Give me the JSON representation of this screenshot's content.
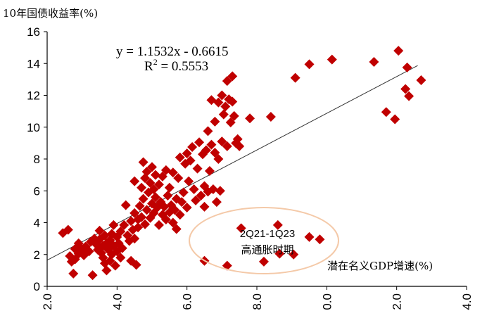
{
  "chart_data": {
    "type": "scatter",
    "ylabel": "10年国债收益率(%)",
    "xlabel": "潜在名义GDP增速(%)",
    "xlim": [
      2.0,
      14.0
    ],
    "ylim": [
      0,
      16
    ],
    "xticks": [
      "2.0",
      "4.0",
      "6.0",
      "8.0",
      "0.0",
      "2.0",
      "4.0"
    ],
    "yticks": [
      "0",
      "2",
      "4",
      "6",
      "8",
      "10",
      "12",
      "14",
      "16"
    ],
    "marker_color": "#c00000",
    "trendline": {
      "slope": 1.1532,
      "intercept": -0.6615,
      "equation": "y = 1.1532x - 0.6615",
      "r2_prefix": "R",
      "r2_sup": "2",
      "r2_value": " = 0.5553"
    },
    "annotation": {
      "line1": "2Q21-1Q23",
      "line2": "高通胀时期",
      "ellipse_color": "#f4c9a8"
    },
    "points": [
      [
        2.45,
        3.35
      ],
      [
        2.6,
        3.55
      ],
      [
        2.65,
        1.9
      ],
      [
        2.7,
        1.55
      ],
      [
        2.75,
        0.8
      ],
      [
        2.8,
        2.35
      ],
      [
        2.8,
        1.7
      ],
      [
        2.9,
        2.05
      ],
      [
        2.9,
        2.7
      ],
      [
        3.0,
        2.35
      ],
      [
        3.05,
        1.95
      ],
      [
        3.1,
        2.5
      ],
      [
        3.2,
        2.2
      ],
      [
        3.25,
        2.8
      ],
      [
        3.3,
        0.7
      ],
      [
        3.35,
        3.0
      ],
      [
        3.4,
        2.65
      ],
      [
        3.45,
        2.3
      ],
      [
        3.5,
        2.95
      ],
      [
        3.5,
        3.5
      ],
      [
        3.55,
        2.1
      ],
      [
        3.6,
        1.8
      ],
      [
        3.6,
        2.55
      ],
      [
        3.65,
        3.2
      ],
      [
        3.65,
        1.45
      ],
      [
        3.7,
        2.7
      ],
      [
        3.7,
        1.0
      ],
      [
        3.75,
        2.3
      ],
      [
        3.8,
        2.9
      ],
      [
        3.8,
        1.6
      ],
      [
        3.85,
        3.3
      ],
      [
        3.85,
        2.0
      ],
      [
        3.9,
        3.85
      ],
      [
        3.9,
        2.55
      ],
      [
        3.95,
        1.3
      ],
      [
        4.0,
        2.2
      ],
      [
        4.0,
        3.1
      ],
      [
        4.05,
        2.7
      ],
      [
        4.1,
        1.8
      ],
      [
        4.1,
        3.45
      ],
      [
        4.15,
        2.4
      ],
      [
        4.2,
        3.85
      ],
      [
        4.25,
        5.1
      ],
      [
        4.3,
        3.2
      ],
      [
        4.35,
        2.85
      ],
      [
        4.4,
        1.6
      ],
      [
        4.4,
        4.1
      ],
      [
        4.45,
        3.55
      ],
      [
        4.5,
        3.0
      ],
      [
        4.5,
        4.6
      ],
      [
        4.5,
        6.6
      ],
      [
        4.55,
        1.35
      ],
      [
        4.6,
        4.2
      ],
      [
        4.6,
        3.7
      ],
      [
        4.65,
        5.05
      ],
      [
        4.7,
        4.35
      ],
      [
        4.7,
        6.2
      ],
      [
        4.75,
        7.8
      ],
      [
        4.75,
        5.5
      ],
      [
        4.8,
        3.9
      ],
      [
        4.8,
        6.8
      ],
      [
        4.85,
        4.8
      ],
      [
        4.85,
        7.2
      ],
      [
        4.9,
        5.9
      ],
      [
        4.95,
        4.3
      ],
      [
        4.95,
        6.5
      ],
      [
        5.0,
        7.5
      ],
      [
        5.0,
        5.2
      ],
      [
        5.05,
        4.6
      ],
      [
        5.05,
        6.1
      ],
      [
        5.1,
        7.0
      ],
      [
        5.1,
        5.6
      ],
      [
        5.15,
        4.95
      ],
      [
        5.2,
        6.4
      ],
      [
        5.2,
        3.85
      ],
      [
        5.25,
        5.3
      ],
      [
        5.3,
        4.5
      ],
      [
        5.3,
        6.9
      ],
      [
        5.35,
        5.0
      ],
      [
        5.4,
        7.3
      ],
      [
        5.4,
        4.2
      ],
      [
        5.45,
        5.7
      ],
      [
        5.5,
        4.65
      ],
      [
        5.5,
        6.2
      ],
      [
        5.55,
        5.1
      ],
      [
        5.6,
        4.0
      ],
      [
        5.6,
        7.15
      ],
      [
        5.65,
        4.8
      ],
      [
        5.7,
        5.5
      ],
      [
        5.7,
        3.6
      ],
      [
        5.75,
        6.8
      ],
      [
        5.8,
        4.5
      ],
      [
        5.8,
        8.1
      ],
      [
        5.85,
        5.3
      ],
      [
        5.9,
        5.9
      ],
      [
        5.95,
        7.7
      ],
      [
        6.0,
        4.95
      ],
      [
        6.0,
        8.35
      ],
      [
        6.05,
        6.6
      ],
      [
        6.1,
        7.9
      ],
      [
        6.15,
        8.75
      ],
      [
        6.2,
        6.1
      ],
      [
        6.25,
        5.4
      ],
      [
        6.3,
        7.4
      ],
      [
        6.35,
        9.05
      ],
      [
        6.4,
        5.7
      ],
      [
        6.45,
        8.3
      ],
      [
        6.5,
        5.0
      ],
      [
        6.5,
        6.3
      ],
      [
        6.55,
        8.55
      ],
      [
        6.6,
        9.75
      ],
      [
        6.6,
        5.95
      ],
      [
        6.65,
        7.25
      ],
      [
        6.7,
        8.9
      ],
      [
        6.7,
        11.7
      ],
      [
        6.75,
        6.1
      ],
      [
        6.8,
        10.35
      ],
      [
        6.8,
        8.4
      ],
      [
        6.85,
        5.3
      ],
      [
        6.9,
        11.55
      ],
      [
        6.9,
        8.0
      ],
      [
        6.95,
        6.0
      ],
      [
        7.0,
        12.0
      ],
      [
        7.0,
        9.1
      ],
      [
        7.05,
        10.8
      ],
      [
        7.1,
        11.3
      ],
      [
        7.15,
        12.9
      ],
      [
        7.15,
        8.8
      ],
      [
        7.2,
        11.75
      ],
      [
        7.25,
        10.3
      ],
      [
        7.3,
        13.2
      ],
      [
        7.3,
        11.6
      ],
      [
        7.35,
        10.7
      ],
      [
        7.4,
        9.0
      ],
      [
        7.45,
        9.25
      ],
      [
        7.5,
        8.8
      ],
      [
        7.55,
        3.65
      ],
      [
        7.8,
        10.55
      ],
      [
        8.4,
        10.65
      ],
      [
        8.6,
        3.85
      ],
      [
        9.1,
        13.1
      ],
      [
        9.5,
        13.95
      ],
      [
        10.15,
        14.25
      ],
      [
        11.35,
        14.1
      ],
      [
        11.7,
        10.95
      ],
      [
        11.95,
        10.5
      ],
      [
        12.05,
        14.8
      ],
      [
        12.25,
        12.4
      ],
      [
        12.3,
        13.75
      ],
      [
        12.35,
        11.95
      ],
      [
        12.7,
        12.95
      ],
      [
        6.5,
        1.6
      ],
      [
        7.15,
        1.3
      ],
      [
        8.2,
        1.55
      ],
      [
        8.65,
        2.05
      ],
      [
        9.05,
        2.0
      ],
      [
        9.5,
        3.1
      ],
      [
        9.8,
        2.95
      ]
    ]
  }
}
